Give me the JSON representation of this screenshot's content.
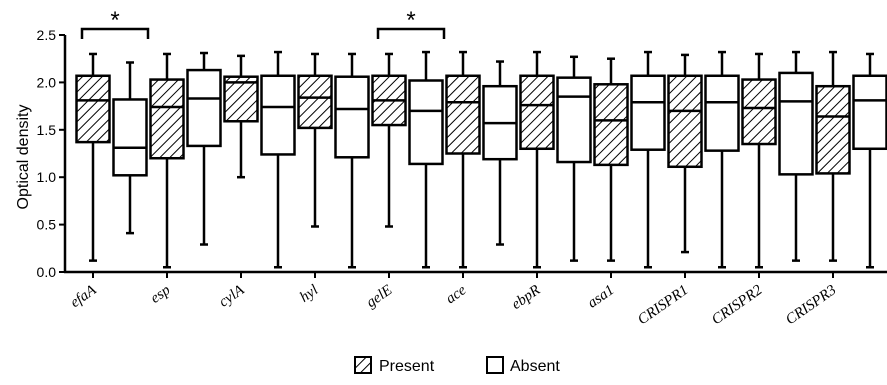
{
  "chart_data": {
    "type": "boxplot",
    "ylabel": "Optical density",
    "ylim": [
      0.0,
      2.5
    ],
    "yticks": [
      "0.0",
      "0.5",
      "1.0",
      "1.5",
      "2.0",
      "2.5"
    ],
    "categories": [
      "efaA",
      "esp",
      "cylA",
      "hyl",
      "gelE",
      "ace",
      "ebpR",
      "asa1",
      "CRISPR1",
      "CRISPR2",
      "CRISPR3"
    ],
    "legend": [
      {
        "name": "Present",
        "pattern": "hatched"
      },
      {
        "name": "Absent",
        "pattern": "open"
      }
    ],
    "legend_position": "bottom-center",
    "grid": false,
    "boxes": [
      {
        "category": "efaA",
        "group": "Present",
        "min": 0.12,
        "q1": 1.37,
        "median": 1.81,
        "q3": 2.07,
        "max": 2.3
      },
      {
        "category": "efaA",
        "group": "Absent",
        "min": 0.41,
        "q1": 1.02,
        "median": 1.31,
        "q3": 1.82,
        "max": 2.21
      },
      {
        "category": "esp",
        "group": "Present",
        "min": 0.05,
        "q1": 1.2,
        "median": 1.74,
        "q3": 2.03,
        "max": 2.3
      },
      {
        "category": "esp",
        "group": "Absent",
        "min": 0.29,
        "q1": 1.33,
        "median": 1.83,
        "q3": 2.13,
        "max": 2.31
      },
      {
        "category": "cylA",
        "group": "Present",
        "min": 1.0,
        "q1": 1.59,
        "median": 2.0,
        "q3": 2.06,
        "max": 2.28
      },
      {
        "category": "cylA",
        "group": "Absent",
        "min": 0.05,
        "q1": 1.24,
        "median": 1.74,
        "q3": 2.07,
        "max": 2.32
      },
      {
        "category": "hyl",
        "group": "Present",
        "min": 0.48,
        "q1": 1.52,
        "median": 1.84,
        "q3": 2.07,
        "max": 2.3
      },
      {
        "category": "hyl",
        "group": "Absent",
        "min": 0.05,
        "q1": 1.21,
        "median": 1.72,
        "q3": 2.06,
        "max": 2.3
      },
      {
        "category": "gelE",
        "group": "Present",
        "min": 0.48,
        "q1": 1.55,
        "median": 1.81,
        "q3": 2.07,
        "max": 2.3
      },
      {
        "category": "gelE",
        "group": "Absent",
        "min": 0.05,
        "q1": 1.14,
        "median": 1.7,
        "q3": 2.02,
        "max": 2.32
      },
      {
        "category": "ace",
        "group": "Present",
        "min": 0.05,
        "q1": 1.25,
        "median": 1.79,
        "q3": 2.07,
        "max": 2.32
      },
      {
        "category": "ace",
        "group": "Absent",
        "min": 0.29,
        "q1": 1.19,
        "median": 1.57,
        "q3": 1.96,
        "max": 2.22
      },
      {
        "category": "ebpR",
        "group": "Present",
        "min": 0.05,
        "q1": 1.3,
        "median": 1.76,
        "q3": 2.07,
        "max": 2.32
      },
      {
        "category": "ebpR",
        "group": "Absent",
        "min": 0.12,
        "q1": 1.16,
        "median": 1.85,
        "q3": 2.05,
        "max": 2.27
      },
      {
        "category": "asa1",
        "group": "Present",
        "min": 0.12,
        "q1": 1.13,
        "median": 1.6,
        "q3": 1.98,
        "max": 2.25
      },
      {
        "category": "asa1",
        "group": "Absent",
        "min": 0.05,
        "q1": 1.29,
        "median": 1.79,
        "q3": 2.07,
        "max": 2.32
      },
      {
        "category": "CRISPR1",
        "group": "Present",
        "min": 0.21,
        "q1": 1.11,
        "median": 1.7,
        "q3": 2.07,
        "max": 2.29
      },
      {
        "category": "CRISPR1",
        "group": "Absent",
        "min": 0.05,
        "q1": 1.28,
        "median": 1.79,
        "q3": 2.07,
        "max": 2.32
      },
      {
        "category": "CRISPR2",
        "group": "Present",
        "min": 0.05,
        "q1": 1.35,
        "median": 1.73,
        "q3": 2.03,
        "max": 2.3
      },
      {
        "category": "CRISPR2",
        "group": "Absent",
        "min": 0.12,
        "q1": 1.03,
        "median": 1.8,
        "q3": 2.1,
        "max": 2.32
      },
      {
        "category": "CRISPR3",
        "group": "Present",
        "min": 0.12,
        "q1": 1.04,
        "median": 1.64,
        "q3": 1.96,
        "max": 2.32
      },
      {
        "category": "CRISPR3",
        "group": "Absent",
        "min": 0.05,
        "q1": 1.3,
        "median": 1.81,
        "q3": 2.07,
        "max": 2.3
      }
    ],
    "significance": [
      {
        "category": "efaA",
        "label": "*"
      },
      {
        "category": "gelE",
        "label": "*"
      }
    ]
  }
}
